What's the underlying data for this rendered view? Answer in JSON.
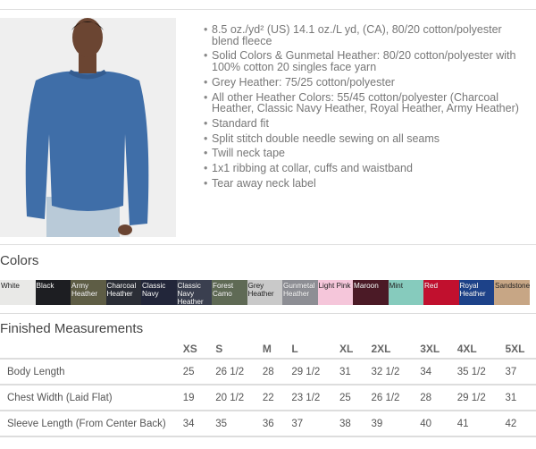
{
  "features": [
    "8.5 oz./yd² (US) 14.1 oz./L yd, (CA), 80/20 cotton/polyester blend fleece",
    "Solid Colors & Gunmetal Heather: 80/20 cotton/polyester with 100% cotton 20 singles face yarn",
    "Grey Heather: 75/25 cotton/polyester",
    "All other Heather Colors: 55/45 cotton/polyester (Charcoal Heather, Classic Navy Heather, Royal Heather, Army Heather)",
    "Standard fit",
    "Split stitch double needle sewing on all seams",
    "Twill neck tape",
    "1x1 ribbing at collar, cuffs and waistband",
    "Tear away neck label"
  ],
  "colors_heading": "Colors",
  "colors": [
    {
      "name": "White",
      "hex": "#e9e9e7",
      "text": "light"
    },
    {
      "name": "Black",
      "hex": "#1d1e22",
      "text": "dark"
    },
    {
      "name": "Army Heather",
      "hex": "#5e5d45",
      "text": "dark"
    },
    {
      "name": "Charcoal Heather",
      "hex": "#2b2e36",
      "text": "dark"
    },
    {
      "name": "Classic Navy",
      "hex": "#22263a",
      "text": "dark"
    },
    {
      "name": "Classic Navy Heather",
      "hex": "#3a3f4f",
      "text": "dark"
    },
    {
      "name": "Forest Camo",
      "hex": "#5f6a55",
      "text": "dark"
    },
    {
      "name": "Grey Heather",
      "hex": "#c9c9c9",
      "text": "light"
    },
    {
      "name": "Gunmetal Heather",
      "hex": "#8d8e94",
      "text": "dark"
    },
    {
      "name": "Light Pink",
      "hex": "#f5c6da",
      "text": "light"
    },
    {
      "name": "Maroon",
      "hex": "#4b1a26",
      "text": "dark"
    },
    {
      "name": "Mint",
      "hex": "#86cbbd",
      "text": "light"
    },
    {
      "name": "Red",
      "hex": "#c1102e",
      "text": "dark"
    },
    {
      "name": "Royal Heather",
      "hex": "#1d4289",
      "text": "dark"
    },
    {
      "name": "Sandstone",
      "hex": "#c7a685",
      "text": "light"
    }
  ],
  "measurements_heading": "Finished Measurements",
  "measurements": {
    "sizes": [
      "XS",
      "S",
      "M",
      "L",
      "XL",
      "2XL",
      "3XL",
      "4XL",
      "5XL"
    ],
    "rows": [
      {
        "label": "Body Length",
        "values": [
          "25",
          "26 1/2",
          "28",
          "29 1/2",
          "31",
          "32 1/2",
          "34",
          "35 1/2",
          "37"
        ]
      },
      {
        "label": "Chest Width (Laid Flat)",
        "values": [
          "19",
          "20 1/2",
          "22",
          "23 1/2",
          "25",
          "26 1/2",
          "28",
          "29 1/2",
          "31"
        ]
      },
      {
        "label": "Sleeve Length (From Center Back)",
        "values": [
          "34",
          "35",
          "36",
          "37",
          "38",
          "39",
          "40",
          "41",
          "42"
        ]
      }
    ]
  }
}
